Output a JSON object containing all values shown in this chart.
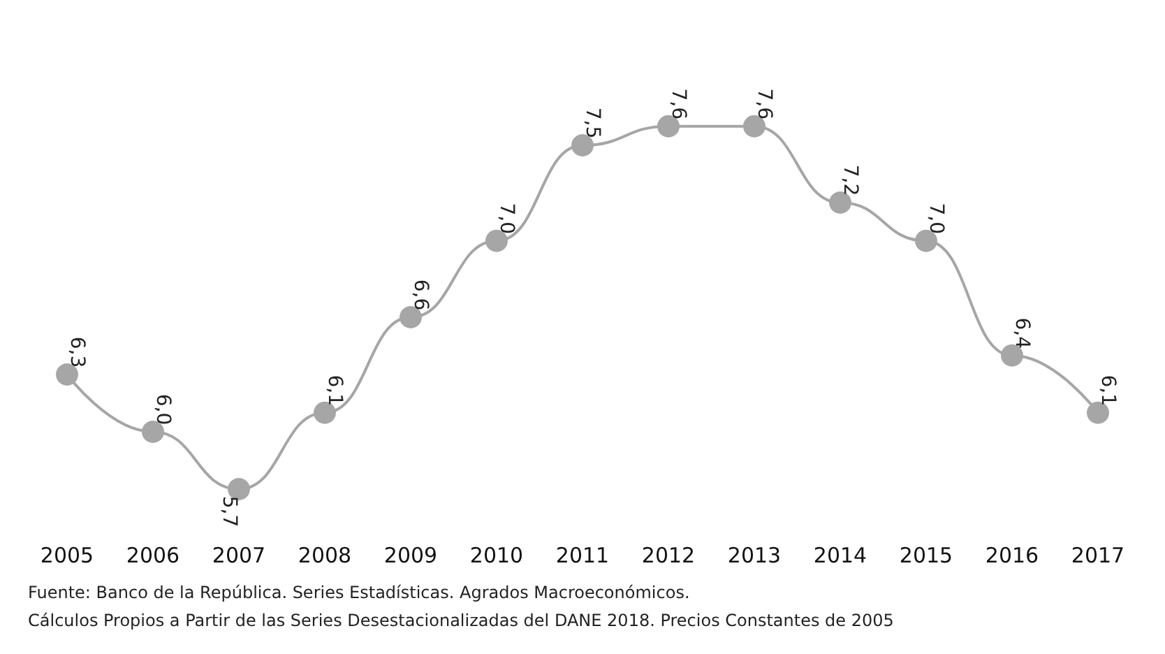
{
  "chart_data": {
    "type": "line",
    "categories": [
      "2005",
      "2006",
      "2007",
      "2008",
      "2009",
      "2010",
      "2011",
      "2012",
      "2013",
      "2014",
      "2015",
      "2016",
      "2017"
    ],
    "series": [
      {
        "color": "#a6a6a6",
        "values": [
          6.3,
          6.0,
          5.7,
          6.1,
          6.6,
          7.0,
          7.5,
          7.6,
          7.6,
          7.2,
          7.0,
          6.4,
          6.1
        ],
        "value_labels": [
          "6,3",
          "6,0",
          "5,7",
          "6,1",
          "6,6",
          "7,0",
          "7,5",
          "7,6",
          "7,6",
          "7,2",
          "7,0",
          "6,4",
          "6,1"
        ]
      }
    ],
    "marker": "circle",
    "tick_labels": "x",
    "grid": false,
    "annotations": [
      "Fuente: Banco de la República. Series Estadísticas. Agrados Macroeconómicos.",
      "Cálculos Propios a Partir de las Series Desestacionalizadas del DANE 2018. Precios Constantes de 2005"
    ]
  }
}
